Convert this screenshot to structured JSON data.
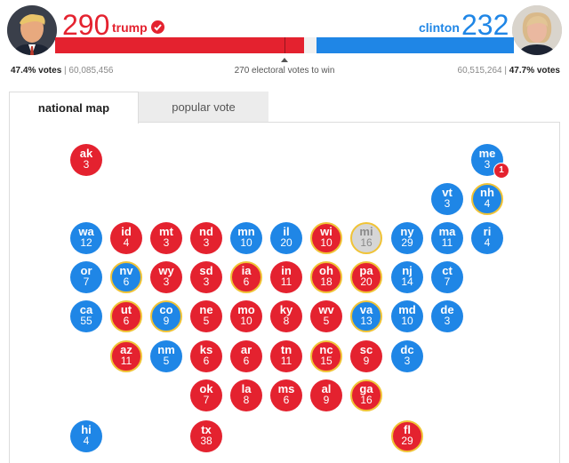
{
  "header": {
    "trump": {
      "electoral_votes": "290",
      "name": "trump",
      "vote_pct": "47.4% votes",
      "vote_count": "60,085,456",
      "color": "#e4222f",
      "winner_icon": "check-circle-icon"
    },
    "clinton": {
      "electoral_votes": "232",
      "name": "clinton",
      "vote_pct": "47.7% votes",
      "vote_count": "60,515,264",
      "color": "#1f86e6"
    },
    "to_win": "270 electoral votes to win"
  },
  "bar": {
    "trump_ev": 290,
    "clinton_ev": 232,
    "total_ev": 538
  },
  "tabs": {
    "national_map": "national map",
    "popular_vote": "popular vote"
  },
  "map": {
    "me_split_badge": "1",
    "states": {
      "ak": {
        "abbr": "ak",
        "ev": "3"
      },
      "me": {
        "abbr": "me",
        "ev": "3"
      },
      "vt": {
        "abbr": "vt",
        "ev": "3"
      },
      "nh": {
        "abbr": "nh",
        "ev": "4"
      },
      "wa": {
        "abbr": "wa",
        "ev": "12"
      },
      "id": {
        "abbr": "id",
        "ev": "4"
      },
      "mt": {
        "abbr": "mt",
        "ev": "3"
      },
      "nd": {
        "abbr": "nd",
        "ev": "3"
      },
      "mn": {
        "abbr": "mn",
        "ev": "10"
      },
      "il": {
        "abbr": "il",
        "ev": "20"
      },
      "wi": {
        "abbr": "wi",
        "ev": "10"
      },
      "mi": {
        "abbr": "mi",
        "ev": "16"
      },
      "ny": {
        "abbr": "ny",
        "ev": "29"
      },
      "ma": {
        "abbr": "ma",
        "ev": "11"
      },
      "ri": {
        "abbr": "ri",
        "ev": "4"
      },
      "or": {
        "abbr": "or",
        "ev": "7"
      },
      "nv": {
        "abbr": "nv",
        "ev": "6"
      },
      "wy": {
        "abbr": "wy",
        "ev": "3"
      },
      "sd": {
        "abbr": "sd",
        "ev": "3"
      },
      "ia": {
        "abbr": "ia",
        "ev": "6"
      },
      "in": {
        "abbr": "in",
        "ev": "11"
      },
      "oh": {
        "abbr": "oh",
        "ev": "18"
      },
      "pa": {
        "abbr": "pa",
        "ev": "20"
      },
      "nj": {
        "abbr": "nj",
        "ev": "14"
      },
      "ct": {
        "abbr": "ct",
        "ev": "7"
      },
      "ca": {
        "abbr": "ca",
        "ev": "55"
      },
      "ut": {
        "abbr": "ut",
        "ev": "6"
      },
      "co": {
        "abbr": "co",
        "ev": "9"
      },
      "ne": {
        "abbr": "ne",
        "ev": "5"
      },
      "mo": {
        "abbr": "mo",
        "ev": "10"
      },
      "ky": {
        "abbr": "ky",
        "ev": "8"
      },
      "wv": {
        "abbr": "wv",
        "ev": "5"
      },
      "va": {
        "abbr": "va",
        "ev": "13"
      },
      "md": {
        "abbr": "md",
        "ev": "10"
      },
      "de": {
        "abbr": "de",
        "ev": "3"
      },
      "az": {
        "abbr": "az",
        "ev": "11"
      },
      "nm": {
        "abbr": "nm",
        "ev": "5"
      },
      "ks": {
        "abbr": "ks",
        "ev": "6"
      },
      "ar": {
        "abbr": "ar",
        "ev": "6"
      },
      "tn": {
        "abbr": "tn",
        "ev": "11"
      },
      "nc": {
        "abbr": "nc",
        "ev": "15"
      },
      "sc": {
        "abbr": "sc",
        "ev": "9"
      },
      "dc": {
        "abbr": "dc",
        "ev": "3"
      },
      "ok": {
        "abbr": "ok",
        "ev": "7"
      },
      "la": {
        "abbr": "la",
        "ev": "8"
      },
      "ms": {
        "abbr": "ms",
        "ev": "6"
      },
      "al": {
        "abbr": "al",
        "ev": "9"
      },
      "ga": {
        "abbr": "ga",
        "ev": "16"
      },
      "hi": {
        "abbr": "hi",
        "ev": "4"
      },
      "tx": {
        "abbr": "tx",
        "ev": "38"
      },
      "fl": {
        "abbr": "fl",
        "ev": "29"
      }
    }
  }
}
